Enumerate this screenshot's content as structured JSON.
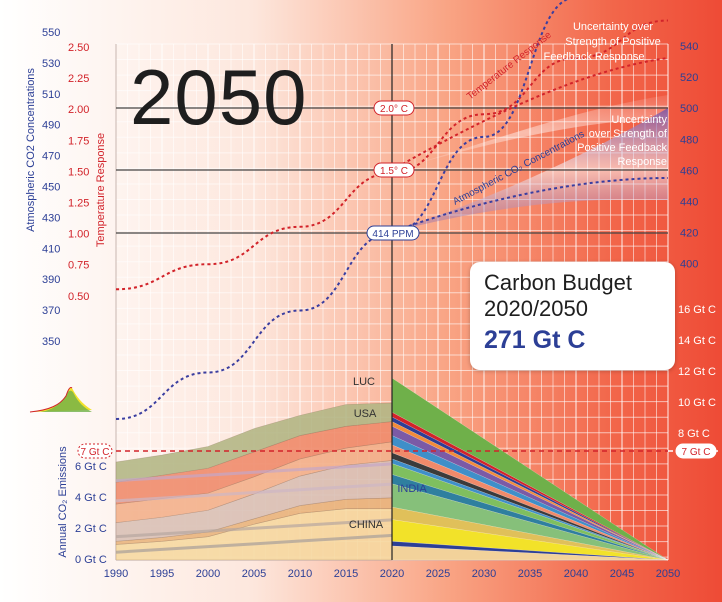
{
  "headline_year": "2050",
  "budget": {
    "title_line1": "Carbon Budget",
    "title_line2": "2020/2050",
    "value": "271 Gt C"
  },
  "axes": {
    "co2_left_label": "Atmospheric CO2 Concentrations",
    "temp_label": "Temperature Response",
    "emissions_label": "Annual CO₂ Emissions",
    "co2_left_ticks": [
      "550",
      "530",
      "510",
      "490",
      "470",
      "450",
      "430",
      "410",
      "390",
      "370",
      "350"
    ],
    "temp_ticks": [
      "2.50",
      "2.25",
      "2.00",
      "1.75",
      "1.50",
      "1.25",
      "1.00",
      "0.75",
      "0.50"
    ],
    "co2_right_ticks": [
      "540",
      "520",
      "500",
      "480",
      "460",
      "440",
      "420",
      "400"
    ],
    "emissions_right_ticks": [
      "16 Gt C",
      "14 Gt C",
      "12 Gt C",
      "10 Gt C",
      "8 Gt C"
    ],
    "emissions_left_ticks": [
      "6 Gt C",
      "4 Gt C",
      "2 Gt C",
      "0 Gt C"
    ],
    "x_ticks": [
      "1990",
      "1995",
      "2000",
      "2005",
      "2010",
      "2015",
      "2020",
      "2025",
      "2030",
      "2035",
      "2040",
      "2045",
      "2050"
    ]
  },
  "annotations": {
    "temp_2deg": "2.0° C",
    "temp_15deg": "1.5° C",
    "ppm": "414 PPM",
    "seven_gt_left": "7 Gt C",
    "seven_gt_right": "7 Gt C",
    "temp_response_curve": "Temperature Response",
    "co2_curve": "Atmospheric CO₂ Concentrations",
    "unc_temp": [
      "Uncertainty over",
      "Strength of Positive",
      "Feedback Response"
    ],
    "unc_co2": [
      "Uncertainty",
      "over Strength of",
      "Positive Feedback",
      "Response"
    ],
    "luc": "LUC",
    "usa": "USA",
    "india": "INDIA",
    "china": "CHINA"
  },
  "colors": {
    "co2_axis": "#2c3f96",
    "temp_axis": "#d2232a",
    "emis_axis": "#2c3f96",
    "right_axis": "#ffffff",
    "luc": "#a7b07a",
    "usa": "#f08a6a",
    "china": "#f7d9a0",
    "green_future": "#6fb04a",
    "yellow_future": "#f2e229"
  },
  "chart_data": {
    "type": "area",
    "title": "",
    "x": [
      1990,
      1995,
      2000,
      2005,
      2010,
      2015,
      2020,
      2050
    ],
    "series": [
      {
        "name": "CHINA",
        "values": [
          1.0,
          1.2,
          1.5,
          2.3,
          3.0,
          3.3,
          3.3,
          0
        ]
      },
      {
        "name": "INDIA",
        "values": [
          0.2,
          0.25,
          0.3,
          0.35,
          0.5,
          0.6,
          0.7,
          0
        ]
      },
      {
        "name": "USA",
        "values": [
          1.4,
          1.5,
          1.6,
          1.6,
          1.5,
          1.4,
          1.3,
          0
        ]
      },
      {
        "name": "LUC",
        "values": [
          1.3,
          1.3,
          1.4,
          1.5,
          1.3,
          1.4,
          1.2,
          0
        ]
      }
    ],
    "total_emissions_gtc": {
      "x": [
        1990,
        1995,
        2000,
        2005,
        2010,
        2015,
        2020,
        2050
      ],
      "y": [
        7.4,
        7.9,
        8.2,
        9.5,
        10.4,
        11.2,
        11.7,
        0
      ]
    },
    "co2_ppm": {
      "x": [
        1990,
        2000,
        2010,
        2020,
        2030,
        2040,
        2050
      ],
      "y": [
        354,
        369,
        389,
        414,
        445,
        490,
        540
      ]
    },
    "temperature_c": {
      "x": [
        1990,
        2000,
        2010,
        2020,
        2030,
        2040,
        2050
      ],
      "y": [
        0.55,
        0.75,
        1.05,
        1.48,
        1.95,
        2.4,
        2.7
      ]
    },
    "carbon_budget_2020_2050_gtc": 271,
    "xlim": [
      1990,
      2050
    ],
    "ylabel_left": "Annual CO₂ Emissions",
    "ylabel_temperature": "Temperature Response",
    "ylabel_co2": "Atmospheric CO2 Concentrations"
  }
}
